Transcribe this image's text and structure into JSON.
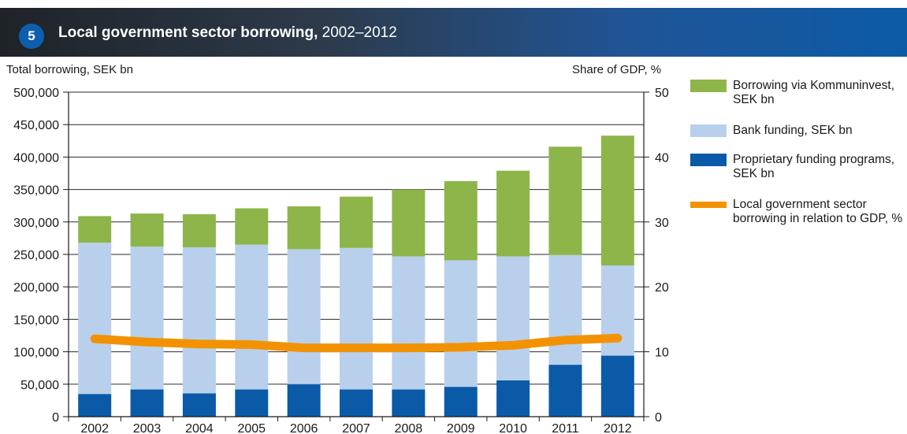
{
  "header": {
    "badge": "5",
    "title_bold": "Local government sector borrowing,",
    "title_rest": "2002–2012"
  },
  "chart_data": {
    "type": "bar",
    "stacked": true,
    "left_axis_label": "Total borrowing, SEK bn",
    "right_axis_label": "Share of GDP, %",
    "categories": [
      "2002",
      "2003",
      "2004",
      "2005",
      "2006",
      "2007",
      "2008",
      "2009",
      "2010",
      "2011",
      "2012"
    ],
    "ylim": [
      0,
      500000
    ],
    "y_ticks": [
      0,
      50000,
      100000,
      150000,
      200000,
      250000,
      300000,
      350000,
      400000,
      450000,
      500000
    ],
    "y_tick_labels": [
      "0",
      "50,000",
      "100,000",
      "150,000",
      "200,000",
      "250,000",
      "300,000",
      "350,000",
      "400,000",
      "450,000",
      "500,000"
    ],
    "y2lim": [
      0,
      50
    ],
    "y2_ticks": [
      0,
      10,
      20,
      30,
      40,
      50
    ],
    "y2_tick_labels": [
      "0",
      "10",
      "20",
      "30",
      "40",
      "50"
    ],
    "grid": true,
    "series": [
      {
        "name": "Proprietary funding programs, SEK bn",
        "color": "#0a5aa8",
        "values": [
          35000,
          42000,
          36000,
          42000,
          50000,
          42000,
          42000,
          46000,
          56000,
          80000,
          94000
        ]
      },
      {
        "name": "Bank funding, SEK bn",
        "color": "#b8d0ec",
        "values": [
          233000,
          220000,
          225000,
          223000,
          208000,
          218000,
          205000,
          195000,
          191000,
          169000,
          139000
        ]
      },
      {
        "name": "Borrowing via Kommuninvest, SEK bn",
        "color": "#8db54a",
        "values": [
          41000,
          51000,
          51000,
          56000,
          66000,
          79000,
          103000,
          122000,
          132000,
          167000,
          200000
        ]
      }
    ],
    "line_series": {
      "name": "Local government sector borrowing in relation to GDP, %",
      "color": "#f39200",
      "axis": "right",
      "values": [
        12.0,
        11.5,
        11.2,
        11.1,
        10.6,
        10.6,
        10.6,
        10.7,
        11.0,
        11.8,
        12.1
      ]
    }
  },
  "legend": [
    {
      "label": "Borrowing via Kommuninvest, SEK bn",
      "color": "#8db54a",
      "kind": "box"
    },
    {
      "label": "Bank funding, SEK bn",
      "color": "#b8d0ec",
      "kind": "box"
    },
    {
      "label": "Proprietary funding programs, SEK bn",
      "color": "#0a5aa8",
      "kind": "box"
    },
    {
      "label": "Local government sector borrowing in relation to GDP, %",
      "color": "#f39200",
      "kind": "line"
    }
  ]
}
